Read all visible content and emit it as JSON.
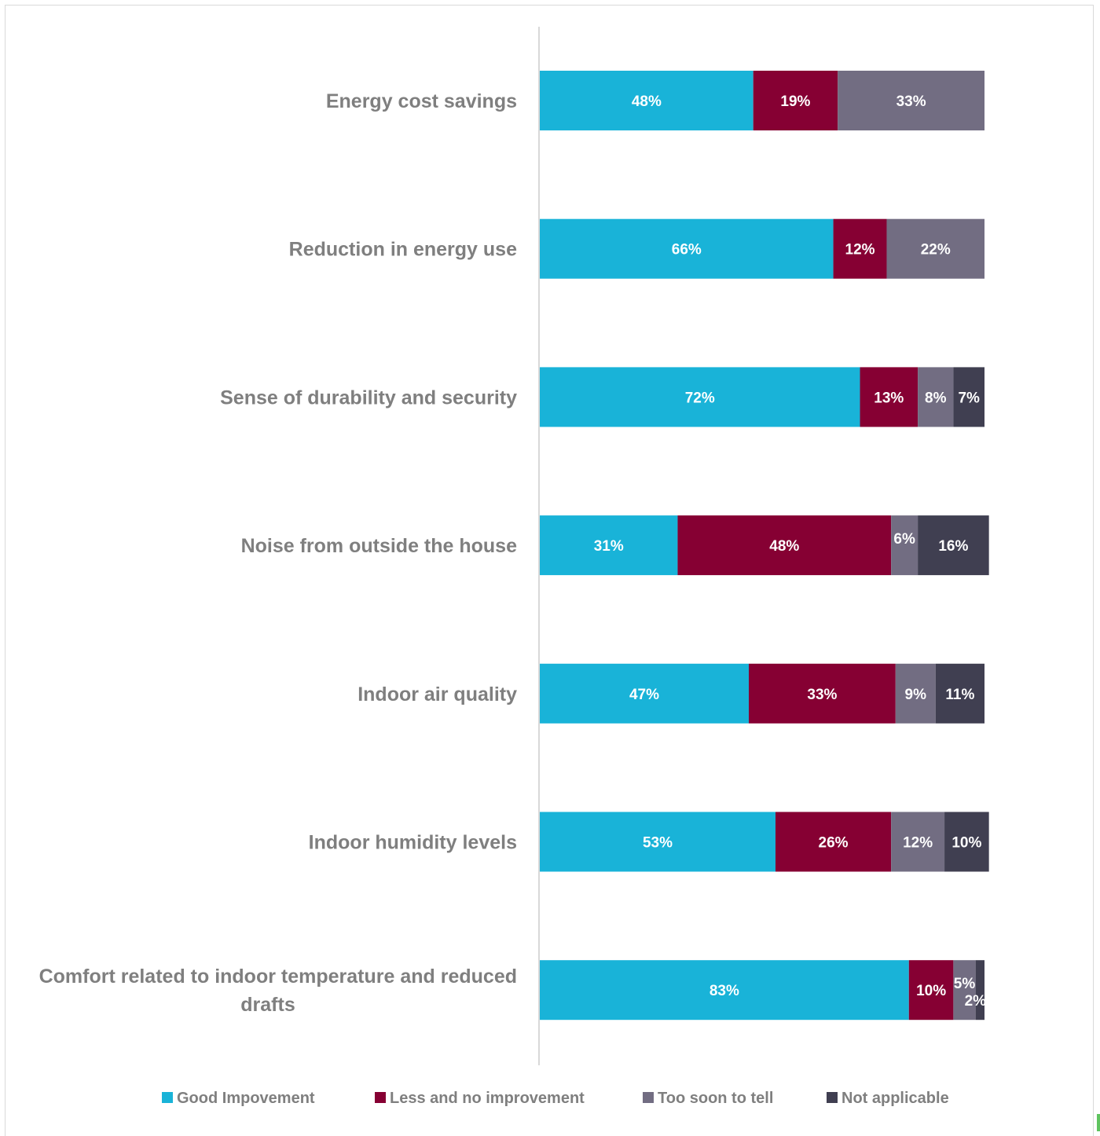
{
  "chart_data": {
    "type": "bar",
    "orientation": "horizontal",
    "stacked": true,
    "normalized": true,
    "categories": [
      "Energy cost savings",
      "Reduction in energy use",
      "Sense of durability and security",
      "Noise from outside the house",
      "Indoor air quality",
      "Indoor humidity levels",
      "Comfort related to indoor temperature and reduced drafts"
    ],
    "series": [
      {
        "name": "Good Impovement",
        "color": "#19b3d8",
        "values": [
          48,
          66,
          72,
          31,
          47,
          53,
          83
        ],
        "labels": [
          "48%",
          "66%",
          "72%",
          "31%",
          "47%",
          "53%",
          "83%"
        ]
      },
      {
        "name": "Less and no improvement",
        "color": "#860033",
        "values": [
          19,
          12,
          13,
          48,
          33,
          26,
          10
        ],
        "labels": [
          "19%",
          "12%",
          "13%",
          "48%",
          "33%",
          "26%",
          "10%"
        ]
      },
      {
        "name": "Too soon to tell",
        "color": "#726d82",
        "values": [
          33,
          22,
          8,
          6,
          9,
          12,
          5
        ],
        "labels": [
          "33%",
          "22%",
          "8%",
          "6%",
          "9%",
          "12%",
          "5%"
        ]
      },
      {
        "name": "Not applicable",
        "color": "#403f51",
        "values": [
          0,
          0,
          7,
          16,
          11,
          10,
          2
        ],
        "labels": [
          "",
          "",
          "7%",
          "16%",
          "11%",
          "10%",
          "2%"
        ]
      }
    ],
    "xlim": [
      0,
      100
    ],
    "title": "",
    "xlabel": "",
    "ylabel": "",
    "grid": false,
    "legend_position": "bottom"
  }
}
